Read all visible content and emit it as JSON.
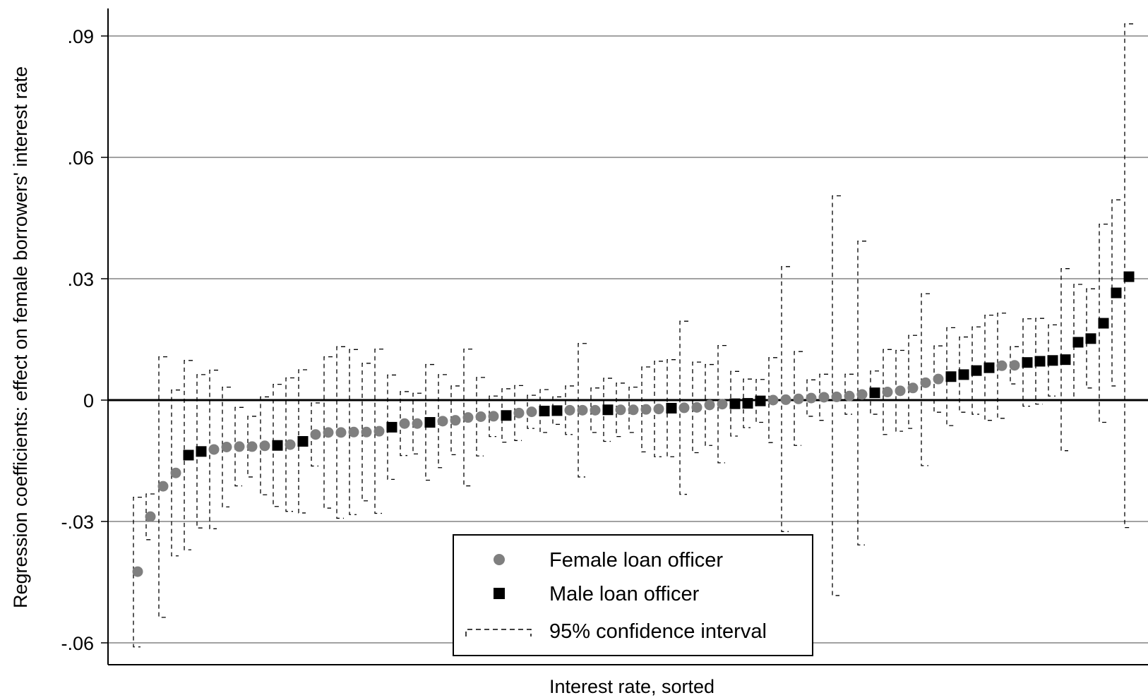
{
  "chart_data": {
    "type": "scatter",
    "title": "",
    "xlabel": "Interest rate, sorted",
    "ylabel": "Regression coefficients: effect on female borrowers' interest rate",
    "ylim": [
      -0.065,
      0.097
    ],
    "yticks": [
      {
        "value": -0.06,
        "label": "-.06"
      },
      {
        "value": -0.03,
        "label": "-.03"
      },
      {
        "value": 0,
        "label": "0"
      },
      {
        "value": 0.03,
        "label": ".03"
      },
      {
        "value": 0.06,
        "label": ".06"
      },
      {
        "value": 0.09,
        "label": ".09"
      }
    ],
    "grid": true,
    "zero_line": true,
    "legend": {
      "position": "bottom-center",
      "entries": [
        {
          "label": "Female loan officer",
          "marker": "circle",
          "color": "#7f7f7f"
        },
        {
          "label": "Male loan officer",
          "marker": "square",
          "color": "#000000"
        },
        {
          "label": "95% confidence interval",
          "marker": "dashed-bracket",
          "color": "#000000"
        }
      ]
    },
    "series": [
      {
        "name": "Female loan officer",
        "marker": "circle",
        "color": "#7f7f7f"
      },
      {
        "name": "Male loan officer",
        "marker": "square",
        "color": "#000000"
      }
    ],
    "points": [
      {
        "rank": 1,
        "officer": "F",
        "coef": -0.0424,
        "ci": [
          -0.061,
          -0.024
        ]
      },
      {
        "rank": 2,
        "officer": "F",
        "coef": -0.0288,
        "ci": [
          -0.0345,
          -0.0232
        ]
      },
      {
        "rank": 3,
        "officer": "F",
        "coef": -0.0213,
        "ci": [
          -0.0537,
          0.0107
        ]
      },
      {
        "rank": 4,
        "officer": "F",
        "coef": -0.018,
        "ci": [
          -0.0385,
          0.0025
        ]
      },
      {
        "rank": 5,
        "officer": "M",
        "coef": -0.0136,
        "ci": [
          -0.037,
          0.0098
        ]
      },
      {
        "rank": 6,
        "officer": "M",
        "coef": -0.0127,
        "ci": [
          -0.0316,
          0.0063
        ]
      },
      {
        "rank": 7,
        "officer": "F",
        "coef": -0.0122,
        "ci": [
          -0.0318,
          0.0074
        ]
      },
      {
        "rank": 8,
        "officer": "F",
        "coef": -0.0116,
        "ci": [
          -0.0264,
          0.0032
        ]
      },
      {
        "rank": 9,
        "officer": "F",
        "coef": -0.0115,
        "ci": [
          -0.0212,
          -0.0018
        ]
      },
      {
        "rank": 10,
        "officer": "F",
        "coef": -0.0115,
        "ci": [
          -0.019,
          -0.004
        ]
      },
      {
        "rank": 11,
        "officer": "F",
        "coef": -0.0113,
        "ci": [
          -0.0234,
          0.0008
        ]
      },
      {
        "rank": 12,
        "officer": "M",
        "coef": -0.0112,
        "ci": [
          -0.0263,
          0.0039
        ]
      },
      {
        "rank": 13,
        "officer": "F",
        "coef": -0.011,
        "ci": [
          -0.0275,
          0.0055
        ]
      },
      {
        "rank": 14,
        "officer": "M",
        "coef": -0.0102,
        "ci": [
          -0.0279,
          0.0075
        ]
      },
      {
        "rank": 15,
        "officer": "F",
        "coef": -0.0085,
        "ci": [
          -0.0163,
          -0.0007
        ]
      },
      {
        "rank": 16,
        "officer": "F",
        "coef": -0.008,
        "ci": [
          -0.0267,
          0.0107
        ]
      },
      {
        "rank": 17,
        "officer": "F",
        "coef": -0.008,
        "ci": [
          -0.0292,
          0.0132
        ]
      },
      {
        "rank": 18,
        "officer": "F",
        "coef": -0.0079,
        "ci": [
          -0.0283,
          0.0125
        ]
      },
      {
        "rank": 19,
        "officer": "F",
        "coef": -0.0079,
        "ci": [
          -0.0249,
          0.0091
        ]
      },
      {
        "rank": 20,
        "officer": "F",
        "coef": -0.0077,
        "ci": [
          -0.028,
          0.0126
        ]
      },
      {
        "rank": 21,
        "officer": "M",
        "coef": -0.0067,
        "ci": [
          -0.0196,
          0.0062
        ]
      },
      {
        "rank": 22,
        "officer": "F",
        "coef": -0.0058,
        "ci": [
          -0.0137,
          0.0021
        ]
      },
      {
        "rank": 23,
        "officer": "F",
        "coef": -0.0058,
        "ci": [
          -0.0133,
          0.0017
        ]
      },
      {
        "rank": 24,
        "officer": "M",
        "coef": -0.0055,
        "ci": [
          -0.0198,
          0.0088
        ]
      },
      {
        "rank": 25,
        "officer": "F",
        "coef": -0.0052,
        "ci": [
          -0.0167,
          0.0063
        ]
      },
      {
        "rank": 26,
        "officer": "F",
        "coef": -0.005,
        "ci": [
          -0.0135,
          0.0035
        ]
      },
      {
        "rank": 27,
        "officer": "F",
        "coef": -0.0043,
        "ci": [
          -0.0212,
          0.0126
        ]
      },
      {
        "rank": 28,
        "officer": "F",
        "coef": -0.0041,
        "ci": [
          -0.0138,
          0.0056
        ]
      },
      {
        "rank": 29,
        "officer": "F",
        "coef": -0.004,
        "ci": [
          -0.009,
          0.001
        ]
      },
      {
        "rank": 30,
        "officer": "M",
        "coef": -0.0038,
        "ci": [
          -0.0104,
          0.0028
        ]
      },
      {
        "rank": 31,
        "officer": "F",
        "coef": -0.0032,
        "ci": [
          -0.01,
          0.0036
        ]
      },
      {
        "rank": 32,
        "officer": "F",
        "coef": -0.0029,
        "ci": [
          -0.007,
          0.0012
        ]
      },
      {
        "rank": 33,
        "officer": "M",
        "coef": -0.0027,
        "ci": [
          -0.008,
          0.0026
        ]
      },
      {
        "rank": 34,
        "officer": "M",
        "coef": -0.0026,
        "ci": [
          -0.006,
          0.0008
        ]
      },
      {
        "rank": 35,
        "officer": "F",
        "coef": -0.0025,
        "ci": [
          -0.0085,
          0.0035
        ]
      },
      {
        "rank": 36,
        "officer": "F",
        "coef": -0.0025,
        "ci": [
          -0.019,
          0.014
        ]
      },
      {
        "rank": 37,
        "officer": "F",
        "coef": -0.0025,
        "ci": [
          -0.008,
          0.003
        ]
      },
      {
        "rank": 38,
        "officer": "M",
        "coef": -0.0024,
        "ci": [
          -0.0102,
          0.0054
        ]
      },
      {
        "rank": 39,
        "officer": "F",
        "coef": -0.0024,
        "ci": [
          -0.009,
          0.0042
        ]
      },
      {
        "rank": 40,
        "officer": "F",
        "coef": -0.0024,
        "ci": [
          -0.008,
          0.0032
        ]
      },
      {
        "rank": 41,
        "officer": "F",
        "coef": -0.0023,
        "ci": [
          -0.0128,
          0.0082
        ]
      },
      {
        "rank": 42,
        "officer": "F",
        "coef": -0.0022,
        "ci": [
          -0.014,
          0.0096
        ]
      },
      {
        "rank": 43,
        "officer": "M",
        "coef": -0.002,
        "ci": [
          -0.014,
          0.01
        ]
      },
      {
        "rank": 44,
        "officer": "F",
        "coef": -0.0019,
        "ci": [
          -0.0233,
          0.0195
        ]
      },
      {
        "rank": 45,
        "officer": "F",
        "coef": -0.0018,
        "ci": [
          -0.013,
          0.0094
        ]
      },
      {
        "rank": 46,
        "officer": "F",
        "coef": -0.0012,
        "ci": [
          -0.0112,
          0.0088
        ]
      },
      {
        "rank": 47,
        "officer": "F",
        "coef": -0.001,
        "ci": [
          -0.0155,
          0.0135
        ]
      },
      {
        "rank": 48,
        "officer": "M",
        "coef": -0.0009,
        "ci": [
          -0.0089,
          0.0071
        ]
      },
      {
        "rank": 49,
        "officer": "M",
        "coef": -0.0008,
        "ci": [
          -0.0068,
          0.0052
        ]
      },
      {
        "rank": 50,
        "officer": "M",
        "coef": -0.0002,
        "ci": [
          -0.0055,
          0.0051
        ]
      },
      {
        "rank": 51,
        "officer": "F",
        "coef": 0.0,
        "ci": [
          -0.0105,
          0.0105
        ]
      },
      {
        "rank": 52,
        "officer": "F",
        "coef": 0.0001,
        "ci": [
          -0.0325,
          0.033
        ]
      },
      {
        "rank": 53,
        "officer": "F",
        "coef": 0.0003,
        "ci": [
          -0.0112,
          0.012
        ]
      },
      {
        "rank": 54,
        "officer": "F",
        "coef": 0.0005,
        "ci": [
          -0.004,
          0.005
        ]
      },
      {
        "rank": 55,
        "officer": "F",
        "coef": 0.0007,
        "ci": [
          -0.005,
          0.0064
        ]
      },
      {
        "rank": 56,
        "officer": "F",
        "coef": 0.0008,
        "ci": [
          -0.0483,
          0.0505
        ]
      },
      {
        "rank": 57,
        "officer": "F",
        "coef": 0.001,
        "ci": [
          -0.0035,
          0.0064
        ]
      },
      {
        "rank": 58,
        "officer": "F",
        "coef": 0.0014,
        "ci": [
          -0.0358,
          0.0393
        ]
      },
      {
        "rank": 59,
        "officer": "M",
        "coef": 0.0018,
        "ci": [
          -0.0035,
          0.0072
        ]
      },
      {
        "rank": 60,
        "officer": "F",
        "coef": 0.002,
        "ci": [
          -0.0085,
          0.0125
        ]
      },
      {
        "rank": 61,
        "officer": "F",
        "coef": 0.0023,
        "ci": [
          -0.0077,
          0.0123
        ]
      },
      {
        "rank": 62,
        "officer": "F",
        "coef": 0.003,
        "ci": [
          -0.007,
          0.016
        ]
      },
      {
        "rank": 63,
        "officer": "F",
        "coef": 0.0043,
        "ci": [
          -0.0162,
          0.0263
        ]
      },
      {
        "rank": 64,
        "officer": "F",
        "coef": 0.0052,
        "ci": [
          -0.003,
          0.0134
        ]
      },
      {
        "rank": 65,
        "officer": "M",
        "coef": 0.0058,
        "ci": [
          -0.0063,
          0.0179
        ]
      },
      {
        "rank": 66,
        "officer": "M",
        "coef": 0.0063,
        "ci": [
          -0.003,
          0.0156
        ]
      },
      {
        "rank": 67,
        "officer": "M",
        "coef": 0.0073,
        "ci": [
          -0.0035,
          0.0181
        ]
      },
      {
        "rank": 68,
        "officer": "M",
        "coef": 0.008,
        "ci": [
          -0.005,
          0.021
        ]
      },
      {
        "rank": 69,
        "officer": "F",
        "coef": 0.0085,
        "ci": [
          -0.0045,
          0.0215
        ]
      },
      {
        "rank": 70,
        "officer": "F",
        "coef": 0.0086,
        "ci": [
          0.004,
          0.0132
        ]
      },
      {
        "rank": 71,
        "officer": "M",
        "coef": 0.0093,
        "ci": [
          -0.0015,
          0.0201
        ]
      },
      {
        "rank": 72,
        "officer": "M",
        "coef": 0.0096,
        "ci": [
          -0.001,
          0.0202
        ]
      },
      {
        "rank": 73,
        "officer": "M",
        "coef": 0.0098,
        "ci": [
          0.001,
          0.0186
        ]
      },
      {
        "rank": 74,
        "officer": "M",
        "coef": 0.01,
        "ci": [
          -0.0125,
          0.0325
        ]
      },
      {
        "rank": 75,
        "officer": "M",
        "coef": 0.0143,
        "ci": [
          0.0,
          0.0286
        ]
      },
      {
        "rank": 76,
        "officer": "M",
        "coef": 0.0152,
        "ci": [
          0.003,
          0.0275
        ]
      },
      {
        "rank": 77,
        "officer": "M",
        "coef": 0.019,
        "ci": [
          -0.0055,
          0.0435
        ]
      },
      {
        "rank": 78,
        "officer": "M",
        "coef": 0.0265,
        "ci": [
          0.0035,
          0.0495
        ]
      },
      {
        "rank": 79,
        "officer": "M",
        "coef": 0.0305,
        "ci": [
          -0.0315,
          0.093
        ]
      }
    ]
  }
}
